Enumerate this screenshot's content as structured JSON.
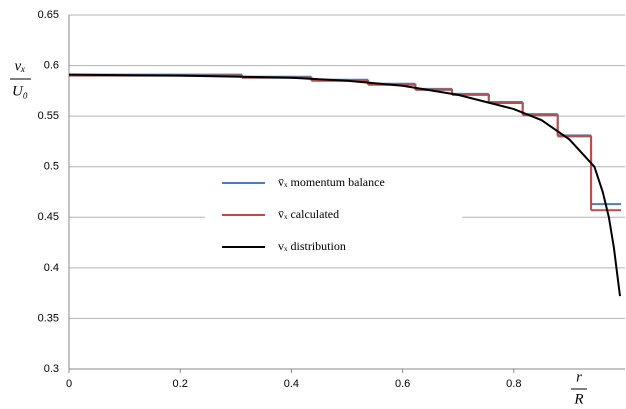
{
  "chart_data": {
    "type": "step-line",
    "y_label": {
      "numerator": "vₓ",
      "denominator": "U₀"
    },
    "x_label": {
      "numerator": "r",
      "denominator": "R"
    },
    "xlim": [
      0,
      1
    ],
    "xticks": [
      0,
      0.2,
      0.4,
      0.6,
      0.8
    ],
    "ylim": [
      0.3,
      0.65
    ],
    "yticks": [
      0.3,
      0.35,
      0.4,
      0.45,
      0.5,
      0.55,
      0.6,
      0.65
    ],
    "grid": true,
    "series": [
      {
        "name": "v̄ₓ momentum balance",
        "color": "#4a7ebb",
        "kind": "step",
        "bins": [
          0,
          0.311,
          0.436,
          0.538,
          0.623,
          0.689,
          0.755,
          0.816,
          0.879,
          0.939,
          0.993
        ],
        "values": [
          0.591,
          0.589,
          0.586,
          0.582,
          0.577,
          0.572,
          0.564,
          0.552,
          0.531,
          0.463
        ]
      },
      {
        "name": "v̄ₓ calculated",
        "color": "#be4b48",
        "kind": "step",
        "bins": [
          0,
          0.311,
          0.436,
          0.538,
          0.623,
          0.689,
          0.755,
          0.816,
          0.879,
          0.939,
          0.993
        ],
        "values": [
          0.59,
          0.588,
          0.585,
          0.581,
          0.576,
          0.571,
          0.563,
          0.551,
          0.53,
          0.457
        ]
      },
      {
        "name": "vₓ distribution",
        "color": "#000000",
        "kind": "curve",
        "x": [
          0,
          0.2,
          0.4,
          0.5,
          0.6,
          0.7,
          0.8,
          0.85,
          0.9,
          0.92,
          0.945,
          0.96,
          0.971,
          0.98,
          0.991
        ],
        "values": [
          0.591,
          0.59,
          0.588,
          0.585,
          0.58,
          0.571,
          0.557,
          0.546,
          0.527,
          0.515,
          0.5,
          0.475,
          0.45,
          0.42,
          0.372
        ]
      }
    ]
  }
}
